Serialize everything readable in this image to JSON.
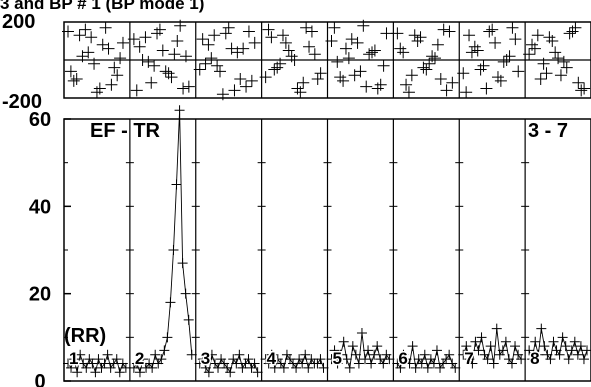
{
  "chart_data": [
    {
      "type": "scatter",
      "panel": "top",
      "title": "3 and BP # 1 (BP mode 1)",
      "ylim": [
        -200,
        200
      ],
      "y_tick_labels": [
        "200",
        "-200"
      ],
      "grid": true,
      "segments": 8,
      "note": "scattered '+' markers spanning the full -200..200 range in every segment",
      "series": [
        {
          "values": [
            150,
            -80,
            60,
            -150,
            120,
            20,
            -110,
            90,
            -40,
            170,
            -170,
            40,
            130,
            -60,
            10,
            -130,
            80,
            -20,
            160,
            -100,
            110,
            -150,
            30,
            -60,
            140,
            -10,
            70,
            -140,
            180,
            -90,
            50,
            -30,
            120,
            -160,
            20,
            100,
            -70,
            160,
            -120,
            0,
            -50,
            150,
            -100,
            60,
            -180,
            130,
            -20,
            90,
            -140,
            40,
            170,
            -60,
            10,
            110,
            -110,
            60,
            -160,
            140,
            -30,
            80,
            -90,
            30,
            170,
            -150,
            50,
            -20,
            120,
            -70,
            150,
            -120,
            0,
            90,
            -40,
            160,
            -100,
            70,
            -170,
            20,
            130,
            -50,
            100,
            -130,
            40,
            180,
            -80,
            60,
            -10,
            140,
            -150,
            30,
            -60,
            110,
            -110,
            170,
            -30,
            50,
            -140,
            90,
            10,
            -90,
            140,
            -160,
            80,
            -20,
            120,
            -80,
            40,
            -120,
            160,
            10,
            -50,
            100,
            -170,
            60,
            150,
            -100,
            20,
            -40,
            130,
            -130,
            -70,
            170,
            -10,
            90,
            -150,
            50,
            130,
            -60,
            20,
            -110,
            160,
            -30,
            70,
            -170,
            110,
            0,
            -90,
            150,
            -50,
            40,
            30,
            -120,
            140,
            -80,
            100,
            -20,
            60,
            -150,
            170,
            -40,
            10,
            120,
            -100,
            80,
            -160,
            150,
            -10,
            40,
            -70,
            130
          ]
        }
      ]
    },
    {
      "type": "scatter",
      "panel": "bottom",
      "ylim": [
        0,
        60
      ],
      "y_ticks": [
        0,
        20,
        40,
        60
      ],
      "grid": true,
      "segments": 8,
      "annotations": [
        "EF - TR",
        "3 - 7",
        "(RR)"
      ],
      "segment_labels": [
        "1",
        "2",
        "3",
        "4",
        "5",
        "6",
        "7",
        "8"
      ],
      "series": [
        {
          "values": [
            4,
            3,
            5,
            2,
            6,
            4,
            3,
            5,
            4,
            2,
            5,
            3,
            4,
            6,
            3,
            4,
            5,
            2,
            4,
            3,
            3,
            4,
            2,
            5,
            3,
            4,
            3,
            6,
            4,
            5,
            7,
            10,
            18,
            30,
            45,
            62,
            27,
            20,
            14,
            6,
            4,
            5,
            3,
            2,
            6,
            4,
            3,
            5,
            4,
            3,
            2,
            5,
            4,
            6,
            3,
            4,
            5,
            3,
            4,
            2,
            5,
            4,
            6,
            3,
            5,
            4,
            3,
            6,
            5,
            4,
            3,
            5,
            4,
            6,
            3,
            5,
            4,
            4,
            5,
            3,
            5,
            7,
            4,
            6,
            9,
            5,
            3,
            8,
            6,
            4,
            11,
            5,
            7,
            4,
            6,
            8,
            5,
            4,
            6,
            5,
            4,
            3,
            6,
            5,
            4,
            8,
            3,
            5,
            4,
            6,
            3,
            5,
            4,
            7,
            3,
            4,
            5,
            6,
            4,
            3,
            6,
            8,
            5,
            4,
            9,
            7,
            10,
            6,
            5,
            8,
            4,
            12,
            6,
            7,
            9,
            5,
            4,
            8,
            6,
            5,
            7,
            5,
            9,
            6,
            12,
            8,
            6,
            5,
            9,
            7,
            6,
            10,
            8,
            5,
            7,
            9,
            6,
            8,
            5,
            7
          ]
        }
      ]
    }
  ]
}
